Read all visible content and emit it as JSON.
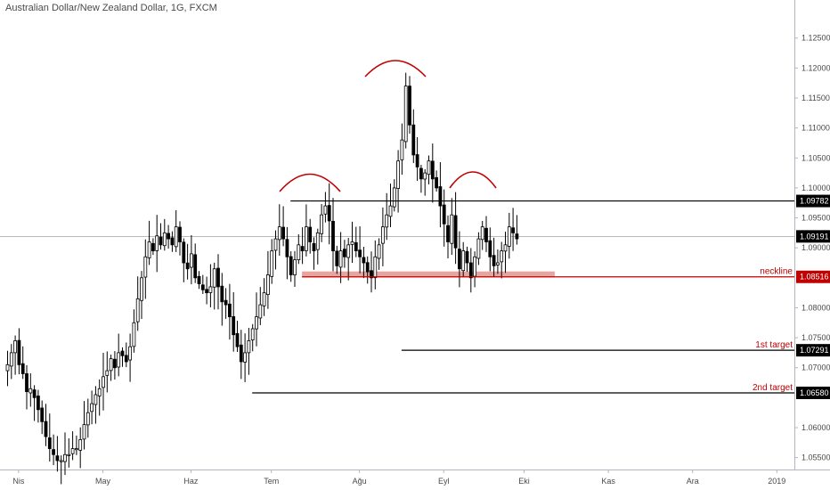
{
  "title": "Australian Dollar/New Zealand Dollar, 1G, FXCM",
  "colors": {
    "background": "#ffffff",
    "candle_up": "#ffffff",
    "candle_down": "#000000",
    "candle_border": "#000000",
    "axis": "#b2b5be",
    "text": "#4a4a4a",
    "annotation_red": "#c00000",
    "neckline_zone": "#e8a49e",
    "label_black_bg": "#000000",
    "label_red_bg": "#c00000"
  },
  "chart_data": {
    "type": "candlestick",
    "ylim": [
      1.0535,
      1.1285
    ],
    "yticks": [
      {
        "value": 1.125,
        "label": "1.12500"
      },
      {
        "value": 1.12,
        "label": "1.12000"
      },
      {
        "value": 1.115,
        "label": "1.11500"
      },
      {
        "value": 1.11,
        "label": "1.11000"
      },
      {
        "value": 1.105,
        "label": "1.10500"
      },
      {
        "value": 1.1,
        "label": "1.10000"
      },
      {
        "value": 1.095,
        "label": "1.09500"
      },
      {
        "value": 1.09,
        "label": "1.09000"
      },
      {
        "value": 1.08,
        "label": "1.08000"
      },
      {
        "value": 1.075,
        "label": "1.07500"
      },
      {
        "value": 1.07,
        "label": "1.07000"
      },
      {
        "value": 1.06,
        "label": "1.06000"
      },
      {
        "value": 1.055,
        "label": "1.05500"
      }
    ],
    "xticks": [
      {
        "label": "Nis",
        "index": 3
      },
      {
        "label": "May",
        "index": 25
      },
      {
        "label": "Haz",
        "index": 48
      },
      {
        "label": "Tem",
        "index": 69
      },
      {
        "label": "Ağu",
        "index": 92
      },
      {
        "label": "Eyl",
        "index": 114
      },
      {
        "label": "Eki",
        "index": 135
      },
      {
        "label": "Kas",
        "index": 157
      },
      {
        "label": "Ara",
        "index": 179
      },
      {
        "label": "2019",
        "index": 201
      }
    ],
    "closes": [
      1.0705,
      1.0725,
      1.0745,
      1.0705,
      1.069,
      1.066,
      1.0665,
      1.065,
      1.063,
      1.061,
      1.0585,
      1.0565,
      1.0555,
      1.0545,
      1.0545,
      1.0555,
      1.0555,
      1.0565,
      1.0565,
      1.058,
      1.0605,
      1.0625,
      1.064,
      1.0655,
      1.0665,
      1.0685,
      1.0695,
      1.0715,
      1.07,
      1.0725,
      1.072,
      1.071,
      1.0735,
      1.0775,
      1.0815,
      1.085,
      1.0885,
      1.091,
      1.0895,
      1.092,
      1.0905,
      1.0925,
      1.0915,
      1.0905,
      1.0935,
      1.091,
      1.0875,
      1.0865,
      1.089,
      1.085,
      1.084,
      1.083,
      1.0825,
      1.0835,
      1.0865,
      1.0835,
      1.081,
      1.0805,
      1.0785,
      1.0755,
      1.0735,
      1.071,
      1.0725,
      1.0745,
      1.0765,
      1.0785,
      1.0805,
      1.0825,
      1.0855,
      1.0895,
      1.0915,
      1.0935,
      1.0915,
      1.0885,
      1.0855,
      1.088,
      1.0905,
      1.0895,
      1.0935,
      1.091,
      1.0895,
      1.0925,
      1.0955,
      1.097,
      1.0945,
      1.0895,
      1.087,
      1.0895,
      1.0885,
      1.0905,
      1.091,
      1.0895,
      1.0885,
      1.0875,
      1.086,
      1.085,
      1.0885,
      1.0905,
      1.0935,
      1.0955,
      1.097,
      1.1,
      1.1045,
      1.108,
      1.117,
      1.1105,
      1.1055,
      1.1035,
      1.1015,
      1.1025,
      1.1045,
      1.1015,
      1.1,
      1.097,
      1.094,
      1.091,
      1.0955,
      1.09,
      1.0865,
      1.0895,
      1.0875,
      1.085,
      1.0885,
      1.0915,
      1.0935,
      1.091,
      1.0885,
      1.087,
      1.0875,
      1.0895,
      1.0905,
      1.0935,
      1.0925,
      1.0915
    ]
  },
  "annotations": {
    "neckline_label": "neckline",
    "target1_label": "1st target",
    "target2_label": "2nd target",
    "levels": {
      "resistance": 1.09782,
      "current": 1.09191,
      "neckline": 1.08516,
      "target1": 1.07291,
      "target2": 1.0658
    }
  },
  "price_labels": {
    "resistance": "1.09782",
    "current": "1.09191",
    "neckline": "1.08516",
    "target1": "1.07291",
    "target2": "1.06580"
  }
}
